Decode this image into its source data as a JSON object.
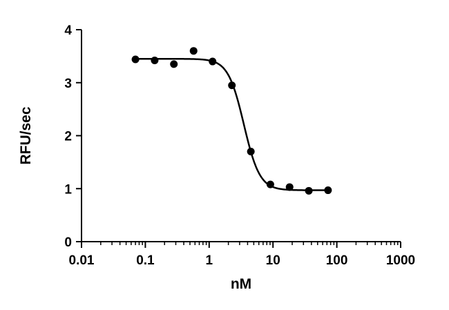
{
  "chart_data": {
    "type": "scatter",
    "title": "",
    "xlabel": "nM",
    "ylabel": "RFU/sec",
    "xscale": "log",
    "xlim": [
      0.01,
      1000
    ],
    "ylim": [
      0,
      4
    ],
    "x_ticks": [
      0.01,
      0.1,
      1,
      10,
      100,
      1000
    ],
    "x_tick_labels": [
      "0.01",
      "0.1",
      "1",
      "10",
      "100",
      "1000"
    ],
    "y_ticks": [
      0,
      1,
      2,
      3,
      4
    ],
    "y_tick_labels": [
      "0",
      "1",
      "2",
      "3",
      "4"
    ],
    "grid": false,
    "legend": "none",
    "series": [
      {
        "x": [
          0.07,
          0.14,
          0.28,
          0.57,
          1.13,
          2.27,
          4.5,
          9.1,
          18.2,
          36.4,
          72.8
        ],
        "y": [
          3.44,
          3.42,
          3.35,
          3.6,
          3.4,
          2.95,
          1.7,
          1.08,
          1.03,
          0.96,
          0.97
        ]
      }
    ],
    "fit": {
      "type": "sigmoidal dose-response curve",
      "top": 3.45,
      "bottom": 0.97,
      "ec50": 3.5,
      "hill_slope": 3.5,
      "x_range": [
        0.07,
        72.8
      ]
    }
  }
}
